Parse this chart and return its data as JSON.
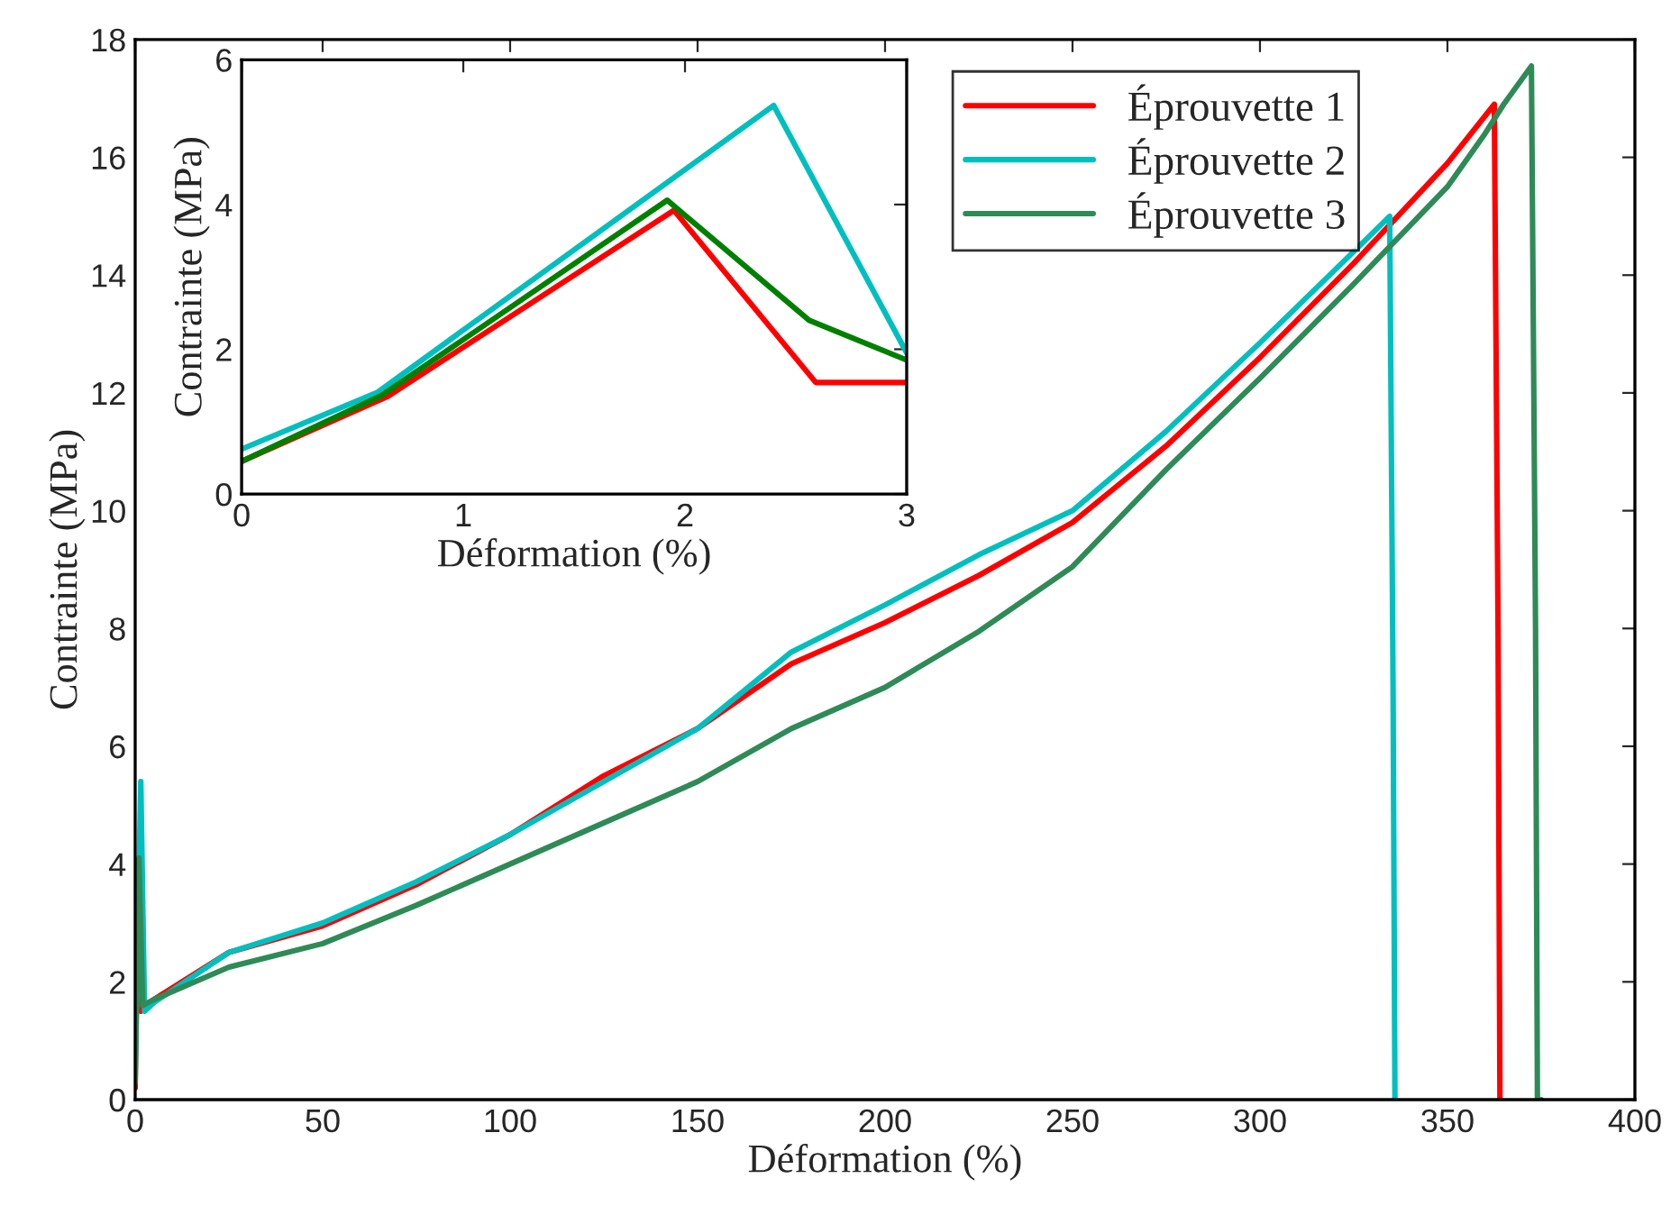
{
  "chart_data": [
    {
      "type": "line",
      "xlabel": "Déformation (%)",
      "ylabel": "Contrainte (MPa)",
      "xlim": [
        0,
        400
      ],
      "ylim": [
        0,
        18
      ],
      "xticks": [
        0,
        50,
        100,
        150,
        200,
        250,
        300,
        350,
        400
      ],
      "yticks": [
        0,
        2,
        4,
        6,
        8,
        10,
        12,
        14,
        16,
        18
      ],
      "grid": false,
      "legend": "top right",
      "line_style": "solid",
      "marker": "none",
      "series": [
        {
          "name": "Éprouvette 1",
          "color": "#ff0000",
          "x": [
            0,
            0.5,
            1.5,
            3,
            5,
            25,
            50,
            75,
            100,
            125,
            150,
            175,
            200,
            225,
            250,
            275,
            300,
            325,
            350,
            362.5,
            363.5,
            364
          ],
          "values": [
            0.2,
            4.0,
            1.5,
            1.6,
            1.7,
            2.5,
            2.95,
            3.65,
            4.5,
            5.5,
            6.3,
            7.4,
            8.1,
            8.9,
            9.8,
            11.1,
            12.6,
            14.2,
            15.9,
            16.9,
            8.0,
            0
          ]
        },
        {
          "name": "Éprouvette 2",
          "color": "#00bfbf",
          "x": [
            0,
            1.5,
            2.5,
            5,
            25,
            50,
            75,
            100,
            125,
            150,
            175,
            200,
            225,
            250,
            275,
            300,
            325,
            334.6,
            335.5,
            336
          ],
          "values": [
            0.5,
            5.4,
            1.5,
            1.65,
            2.5,
            3.0,
            3.7,
            4.5,
            5.4,
            6.3,
            7.6,
            8.4,
            9.25,
            10.0,
            11.35,
            12.85,
            14.4,
            15.0,
            7.0,
            0
          ]
        },
        {
          "name": "Éprouvette 3",
          "color": "#2e8b57",
          "x": [
            0,
            1,
            2,
            5,
            25,
            50,
            75,
            100,
            125,
            150,
            175,
            200,
            225,
            250,
            275,
            300,
            325,
            350,
            360,
            365,
            372.4,
            373.5,
            374,
            375
          ],
          "values": [
            0.3,
            4.1,
            1.6,
            1.7,
            2.25,
            2.65,
            3.3,
            4.0,
            4.7,
            5.4,
            6.3,
            7.0,
            7.95,
            9.05,
            10.7,
            12.25,
            13.85,
            15.5,
            16.4,
            16.9,
            17.55,
            8.0,
            0,
            0
          ]
        }
      ]
    },
    {
      "type": "line",
      "xlabel": "Déformation (%)",
      "ylabel": "Contrainte (MPa)",
      "xlim": [
        0,
        3
      ],
      "ylim": [
        0,
        6
      ],
      "xticks": [
        0,
        1,
        2,
        3
      ],
      "yticks": [
        0,
        2,
        4,
        6
      ],
      "grid": false,
      "line_style": "solid",
      "marker": "none",
      "series": [
        {
          "color": "#ff0000",
          "x": [
            0,
            0.66,
            1.95,
            2.59,
            3
          ],
          "values": [
            0.45,
            1.35,
            3.92,
            1.54,
            1.54
          ]
        },
        {
          "color": "#00bfbf",
          "x": [
            0,
            0.61,
            2.4,
            3
          ],
          "values": [
            0.62,
            1.4,
            5.37,
            1.95
          ]
        },
        {
          "color": "#008000",
          "x": [
            0,
            0.63,
            1.92,
            2.56,
            3
          ],
          "values": [
            0.45,
            1.36,
            4.06,
            2.4,
            1.85
          ]
        }
      ]
    }
  ]
}
